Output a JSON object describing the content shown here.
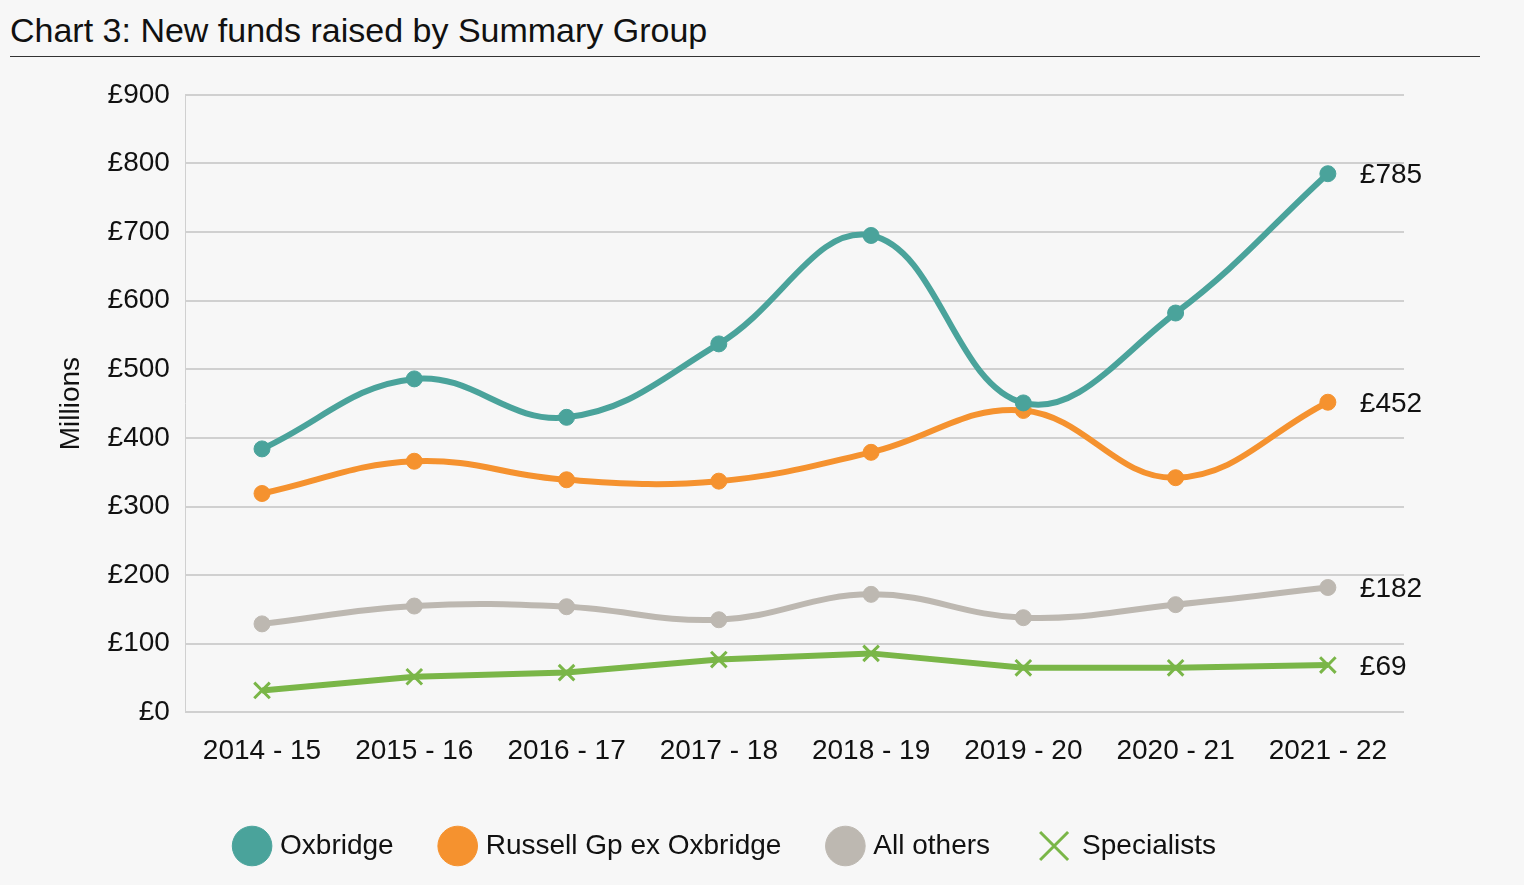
{
  "chart_data": {
    "type": "line",
    "title": "Chart 3: New funds raised by Summary Group",
    "y_label": "Millions",
    "categories": [
      "2014 - 15",
      "2015 - 16",
      "2016 - 17",
      "2017 - 18",
      "2018 - 19",
      "2019 - 20",
      "2020 - 21",
      "2021 - 22"
    ],
    "series": [
      {
        "name": "Oxbridge",
        "color": "#4aa39b",
        "marker": "circle",
        "line_style": "smooth",
        "values": [
          384,
          486,
          430,
          537,
          695,
          451,
          582,
          785
        ],
        "value_labels": [
          null,
          null,
          null,
          null,
          null,
          null,
          null,
          "£785"
        ]
      },
      {
        "name": "Russell Gp ex Oxbridge",
        "color": "#f5922f",
        "marker": "circle",
        "line_style": "smooth",
        "values": [
          319,
          366,
          339,
          337,
          379,
          440,
          342,
          452
        ],
        "value_labels": [
          null,
          null,
          null,
          null,
          null,
          null,
          null,
          "£452"
        ]
      },
      {
        "name": "All others",
        "color": "#bdb8b1",
        "marker": "circle",
        "line_style": "smooth",
        "values": [
          129,
          155,
          154,
          135,
          172,
          138,
          157,
          182
        ],
        "value_labels": [
          null,
          null,
          null,
          null,
          null,
          null,
          null,
          "£182"
        ]
      },
      {
        "name": "Specialists",
        "color": "#7ab648",
        "marker": "cross",
        "line_style": "straight",
        "values": [
          32,
          52,
          58,
          77,
          86,
          65,
          65,
          69
        ],
        "value_labels": [
          null,
          null,
          null,
          null,
          null,
          null,
          null,
          "£69"
        ]
      }
    ],
    "ylim": [
      0,
      900
    ],
    "yticks": [
      {
        "value": 0,
        "label": "£0"
      },
      {
        "value": 100,
        "label": "£100"
      },
      {
        "value": 200,
        "label": "£200"
      },
      {
        "value": 300,
        "label": "£300"
      },
      {
        "value": 400,
        "label": "£400"
      },
      {
        "value": 500,
        "label": "£500"
      },
      {
        "value": 600,
        "label": "£600"
      },
      {
        "value": 700,
        "label": "£700"
      },
      {
        "value": 800,
        "label": "£800"
      },
      {
        "value": 900,
        "label": "£900"
      }
    ],
    "grid": true,
    "legend": "bottom"
  }
}
